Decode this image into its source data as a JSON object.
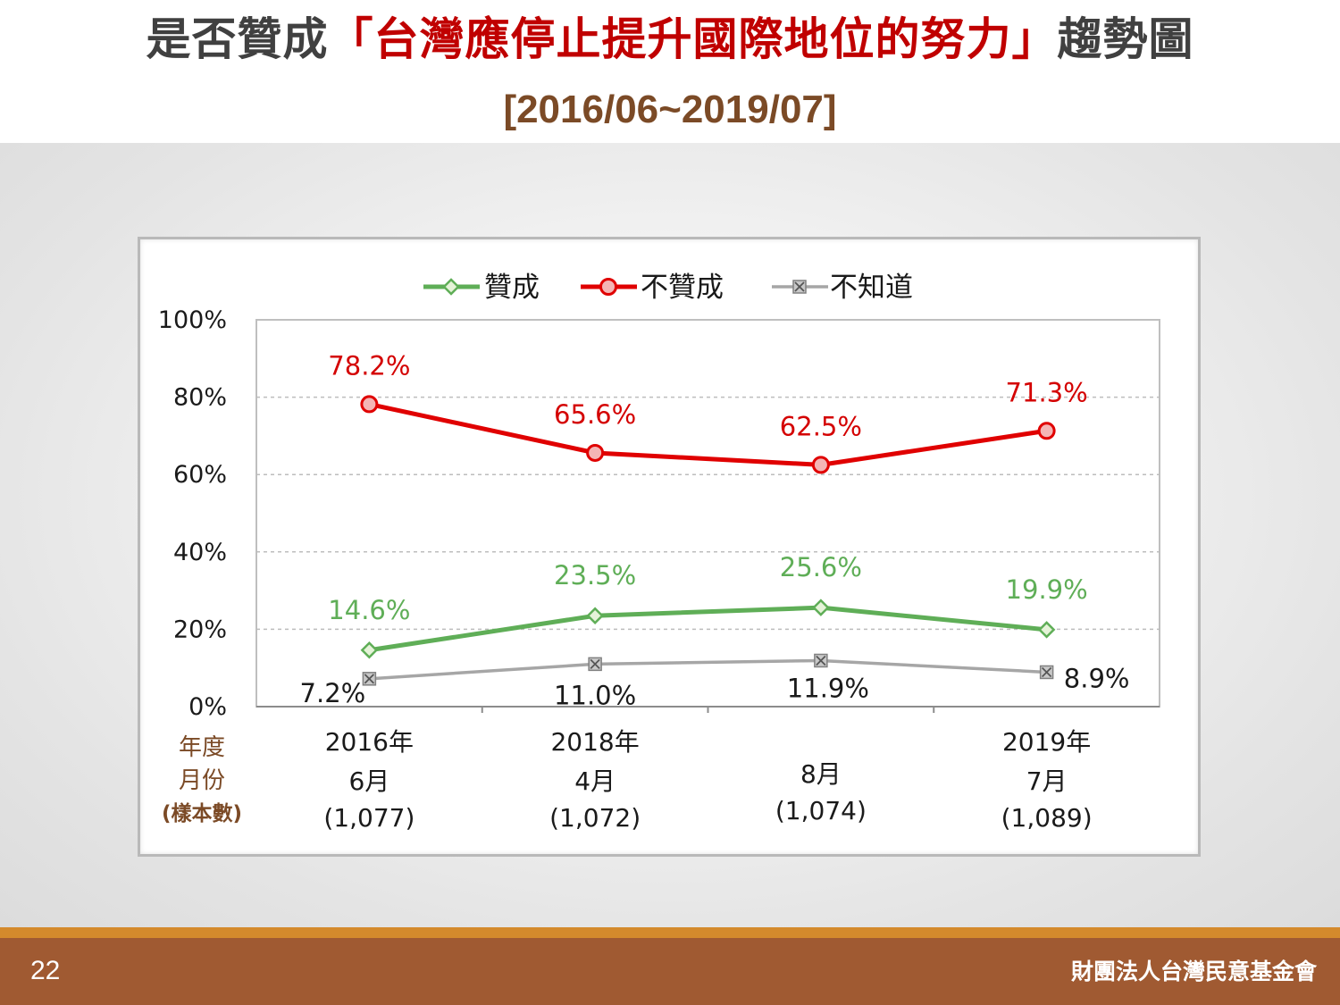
{
  "header": {
    "title_prefix": "是否贊成",
    "title_highlight": "「台灣應停止提升國際地位的努力」",
    "title_suffix": "趨勢圖",
    "subtitle": "[2016/06~2019/07]"
  },
  "footer": {
    "page_number": "22",
    "organization": "財團法人台灣民意基金會"
  },
  "chart_data": {
    "type": "line",
    "ylim": [
      0,
      100
    ],
    "yticks": [
      "0%",
      "20%",
      "40%",
      "60%",
      "80%",
      "100%"
    ],
    "grid": true,
    "legend_position": "top",
    "row_labels": [
      "年度",
      "月份",
      "(樣本數)"
    ],
    "categories": [
      {
        "year": "2016年",
        "month": "6月",
        "n": "(1,077)"
      },
      {
        "year": "2018年",
        "month": "4月",
        "n": "(1,072)"
      },
      {
        "year": "",
        "month": "8月",
        "n": "(1,074)"
      },
      {
        "year": "2019年",
        "month": "7月",
        "n": "(1,089)"
      }
    ],
    "series": [
      {
        "name": "贊成",
        "color": "#5fae57",
        "marker": "diamond",
        "values": [
          14.6,
          23.5,
          25.6,
          19.9
        ],
        "labels": [
          "14.6%",
          "23.5%",
          "25.6%",
          "19.9%"
        ]
      },
      {
        "name": "不贊成",
        "color": "#e00000",
        "marker": "circle",
        "values": [
          78.2,
          65.6,
          62.5,
          71.3
        ],
        "labels": [
          "78.2%",
          "65.6%",
          "62.5%",
          "71.3%"
        ]
      },
      {
        "name": "不知道",
        "color": "#a6a6a6",
        "marker": "x-square",
        "values": [
          7.2,
          11.0,
          11.9,
          8.9
        ],
        "labels": [
          "7.2%",
          "11.0%",
          "11.9%",
          "8.9%"
        ]
      }
    ]
  }
}
